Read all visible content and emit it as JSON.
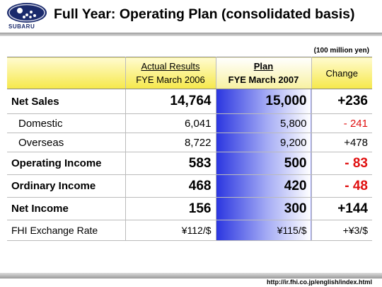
{
  "header": {
    "title": "Full Year: Operating Plan (consolidated basis)",
    "brand": "SUBARU"
  },
  "table": {
    "unit": "(100 million yen)",
    "columns": {
      "actual": [
        "Actual Results",
        "FYE March 2006"
      ],
      "plan": [
        "Plan",
        "FYE March 2007"
      ],
      "change": "Change"
    },
    "rows": [
      [
        "Net Sales",
        "14,764",
        "15,000",
        "+236"
      ],
      [
        "Domestic",
        "6,041",
        "5,800",
        "- 241"
      ],
      [
        "Overseas",
        "8,722",
        "9,200",
        "+478"
      ],
      [
        "Operating Income",
        "583",
        "500",
        "- 83"
      ],
      [
        "Ordinary Income",
        "468",
        "420",
        "- 48"
      ],
      [
        "Net Income",
        "156",
        "300",
        "+144"
      ],
      [
        "FHI Exchange Rate",
        "¥112/$",
        "¥115/$",
        "+¥3/$"
      ]
    ]
  },
  "footer": {
    "url": "http://ir.fhi.co.jp/english/index.html"
  }
}
